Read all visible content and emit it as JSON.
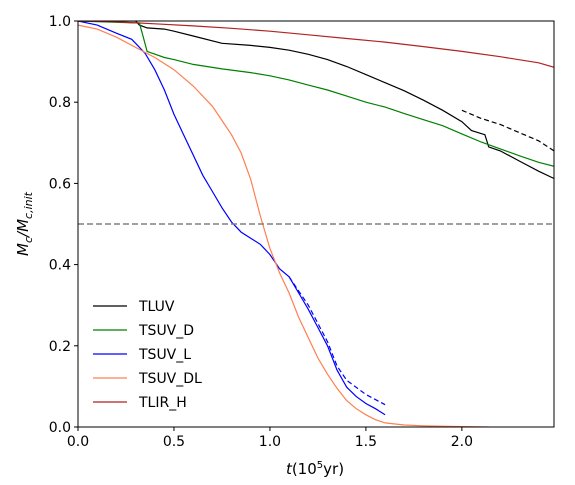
{
  "chart_data": {
    "type": "line",
    "xlabel_main": "t",
    "xlabel_unit_pre": "(10",
    "xlabel_unit_sup": "5",
    "xlabel_unit_post": "yr)",
    "ylabel_main": "M",
    "ylabel_sub1": "c",
    "ylabel_mid": "/M",
    "ylabel_sub2": "c,init",
    "xlim": [
      0.0,
      2.48
    ],
    "ylim": [
      0.0,
      1.0
    ],
    "xticks": [
      {
        "value": 0.0,
        "label": "0.0"
      },
      {
        "value": 0.5,
        "label": "0.5"
      },
      {
        "value": 1.0,
        "label": "1.0"
      },
      {
        "value": 1.5,
        "label": "1.5"
      },
      {
        "value": 2.0,
        "label": "2.0"
      }
    ],
    "yticks": [
      {
        "value": 0.0,
        "label": "0.0"
      },
      {
        "value": 0.2,
        "label": "0.2"
      },
      {
        "value": 0.4,
        "label": "0.4"
      },
      {
        "value": 0.6,
        "label": "0.6"
      },
      {
        "value": 0.8,
        "label": "0.8"
      },
      {
        "value": 1.0,
        "label": "1.0"
      }
    ],
    "grid": false,
    "legend_position": "lower-left",
    "reference_line": {
      "y": 0.5,
      "color": "#808080",
      "style": "dashed"
    },
    "series": [
      {
        "name": "TLUV",
        "color": "#000000",
        "style": "solid",
        "points": [
          [
            0.0,
            1.0
          ],
          [
            0.3,
            1.0
          ],
          [
            0.32,
            0.99
          ],
          [
            0.36,
            0.983
          ],
          [
            0.45,
            0.98
          ],
          [
            0.5,
            0.975
          ],
          [
            0.6,
            0.963
          ],
          [
            0.75,
            0.945
          ],
          [
            0.9,
            0.94
          ],
          [
            1.0,
            0.935
          ],
          [
            1.1,
            0.928
          ],
          [
            1.2,
            0.918
          ],
          [
            1.3,
            0.905
          ],
          [
            1.4,
            0.888
          ],
          [
            1.5,
            0.868
          ],
          [
            1.6,
            0.848
          ],
          [
            1.7,
            0.828
          ],
          [
            1.8,
            0.805
          ],
          [
            1.9,
            0.78
          ],
          [
            2.0,
            0.752
          ],
          [
            2.05,
            0.73
          ],
          [
            2.12,
            0.72
          ],
          [
            2.14,
            0.69
          ],
          [
            2.2,
            0.68
          ],
          [
            2.3,
            0.655
          ],
          [
            2.4,
            0.63
          ],
          [
            2.48,
            0.612
          ]
        ]
      },
      {
        "name": "",
        "color": "#000000",
        "style": "dashed",
        "points": [
          [
            2.0,
            0.78
          ],
          [
            2.1,
            0.76
          ],
          [
            2.2,
            0.745
          ],
          [
            2.3,
            0.725
          ],
          [
            2.4,
            0.705
          ],
          [
            2.48,
            0.68
          ]
        ]
      },
      {
        "name": "TSUV_D",
        "color": "#008000",
        "style": "solid",
        "points": [
          [
            0.0,
            1.0
          ],
          [
            0.32,
            0.995
          ],
          [
            0.34,
            0.96
          ],
          [
            0.36,
            0.925
          ],
          [
            0.45,
            0.91
          ],
          [
            0.5,
            0.905
          ],
          [
            0.6,
            0.893
          ],
          [
            0.75,
            0.882
          ],
          [
            0.9,
            0.873
          ],
          [
            1.0,
            0.865
          ],
          [
            1.1,
            0.855
          ],
          [
            1.2,
            0.842
          ],
          [
            1.3,
            0.83
          ],
          [
            1.4,
            0.815
          ],
          [
            1.5,
            0.8
          ],
          [
            1.6,
            0.788
          ],
          [
            1.7,
            0.772
          ],
          [
            1.8,
            0.757
          ],
          [
            1.9,
            0.742
          ],
          [
            2.0,
            0.722
          ],
          [
            2.1,
            0.702
          ],
          [
            2.2,
            0.685
          ],
          [
            2.3,
            0.668
          ],
          [
            2.4,
            0.652
          ],
          [
            2.48,
            0.642
          ]
        ]
      },
      {
        "name": "TSUV_L",
        "color": "#0000ff",
        "style": "solid",
        "points": [
          [
            0.0,
            1.0
          ],
          [
            0.1,
            0.99
          ],
          [
            0.2,
            0.97
          ],
          [
            0.28,
            0.955
          ],
          [
            0.3,
            0.945
          ],
          [
            0.35,
            0.92
          ],
          [
            0.4,
            0.88
          ],
          [
            0.45,
            0.83
          ],
          [
            0.5,
            0.77
          ],
          [
            0.55,
            0.72
          ],
          [
            0.6,
            0.67
          ],
          [
            0.65,
            0.62
          ],
          [
            0.7,
            0.58
          ],
          [
            0.75,
            0.54
          ],
          [
            0.8,
            0.505
          ],
          [
            0.85,
            0.48
          ],
          [
            0.9,
            0.465
          ],
          [
            0.95,
            0.45
          ],
          [
            1.0,
            0.425
          ],
          [
            1.05,
            0.39
          ],
          [
            1.1,
            0.37
          ],
          [
            1.15,
            0.33
          ],
          [
            1.2,
            0.29
          ],
          [
            1.25,
            0.245
          ],
          [
            1.3,
            0.2
          ],
          [
            1.35,
            0.14
          ],
          [
            1.4,
            0.098
          ],
          [
            1.45,
            0.075
          ],
          [
            1.5,
            0.058
          ],
          [
            1.55,
            0.045
          ],
          [
            1.6,
            0.03
          ]
        ]
      },
      {
        "name": "",
        "color": "#0000ff",
        "style": "dashed",
        "points": [
          [
            1.1,
            0.37
          ],
          [
            1.2,
            0.3
          ],
          [
            1.3,
            0.21
          ],
          [
            1.35,
            0.15
          ],
          [
            1.4,
            0.115
          ],
          [
            1.5,
            0.08
          ],
          [
            1.6,
            0.055
          ]
        ]
      },
      {
        "name": "TSUV_DL",
        "color": "#ff7f50",
        "style": "solid",
        "points": [
          [
            0.0,
            0.99
          ],
          [
            0.1,
            0.98
          ],
          [
            0.2,
            0.96
          ],
          [
            0.3,
            0.935
          ],
          [
            0.4,
            0.91
          ],
          [
            0.5,
            0.88
          ],
          [
            0.6,
            0.84
          ],
          [
            0.7,
            0.79
          ],
          [
            0.75,
            0.755
          ],
          [
            0.8,
            0.72
          ],
          [
            0.85,
            0.675
          ],
          [
            0.9,
            0.61
          ],
          [
            0.95,
            0.52
          ],
          [
            1.0,
            0.44
          ],
          [
            1.05,
            0.38
          ],
          [
            1.1,
            0.33
          ],
          [
            1.15,
            0.27
          ],
          [
            1.2,
            0.22
          ],
          [
            1.25,
            0.17
          ],
          [
            1.3,
            0.13
          ],
          [
            1.35,
            0.095
          ],
          [
            1.4,
            0.065
          ],
          [
            1.45,
            0.045
          ],
          [
            1.5,
            0.03
          ],
          [
            1.55,
            0.018
          ],
          [
            1.6,
            0.01
          ],
          [
            1.7,
            0.005
          ],
          [
            1.8,
            0.003
          ],
          [
            2.0,
            0.001
          ],
          [
            2.14,
            0.0
          ]
        ]
      },
      {
        "name": "TLIR_H",
        "color": "#b22222",
        "style": "solid",
        "points": [
          [
            0.0,
            1.0
          ],
          [
            0.2,
            0.998
          ],
          [
            0.4,
            0.993
          ],
          [
            0.6,
            0.988
          ],
          [
            0.8,
            0.982
          ],
          [
            1.0,
            0.975
          ],
          [
            1.2,
            0.966
          ],
          [
            1.4,
            0.957
          ],
          [
            1.6,
            0.948
          ],
          [
            1.8,
            0.937
          ],
          [
            2.0,
            0.925
          ],
          [
            2.2,
            0.912
          ],
          [
            2.4,
            0.897
          ],
          [
            2.48,
            0.886
          ]
        ]
      }
    ]
  }
}
